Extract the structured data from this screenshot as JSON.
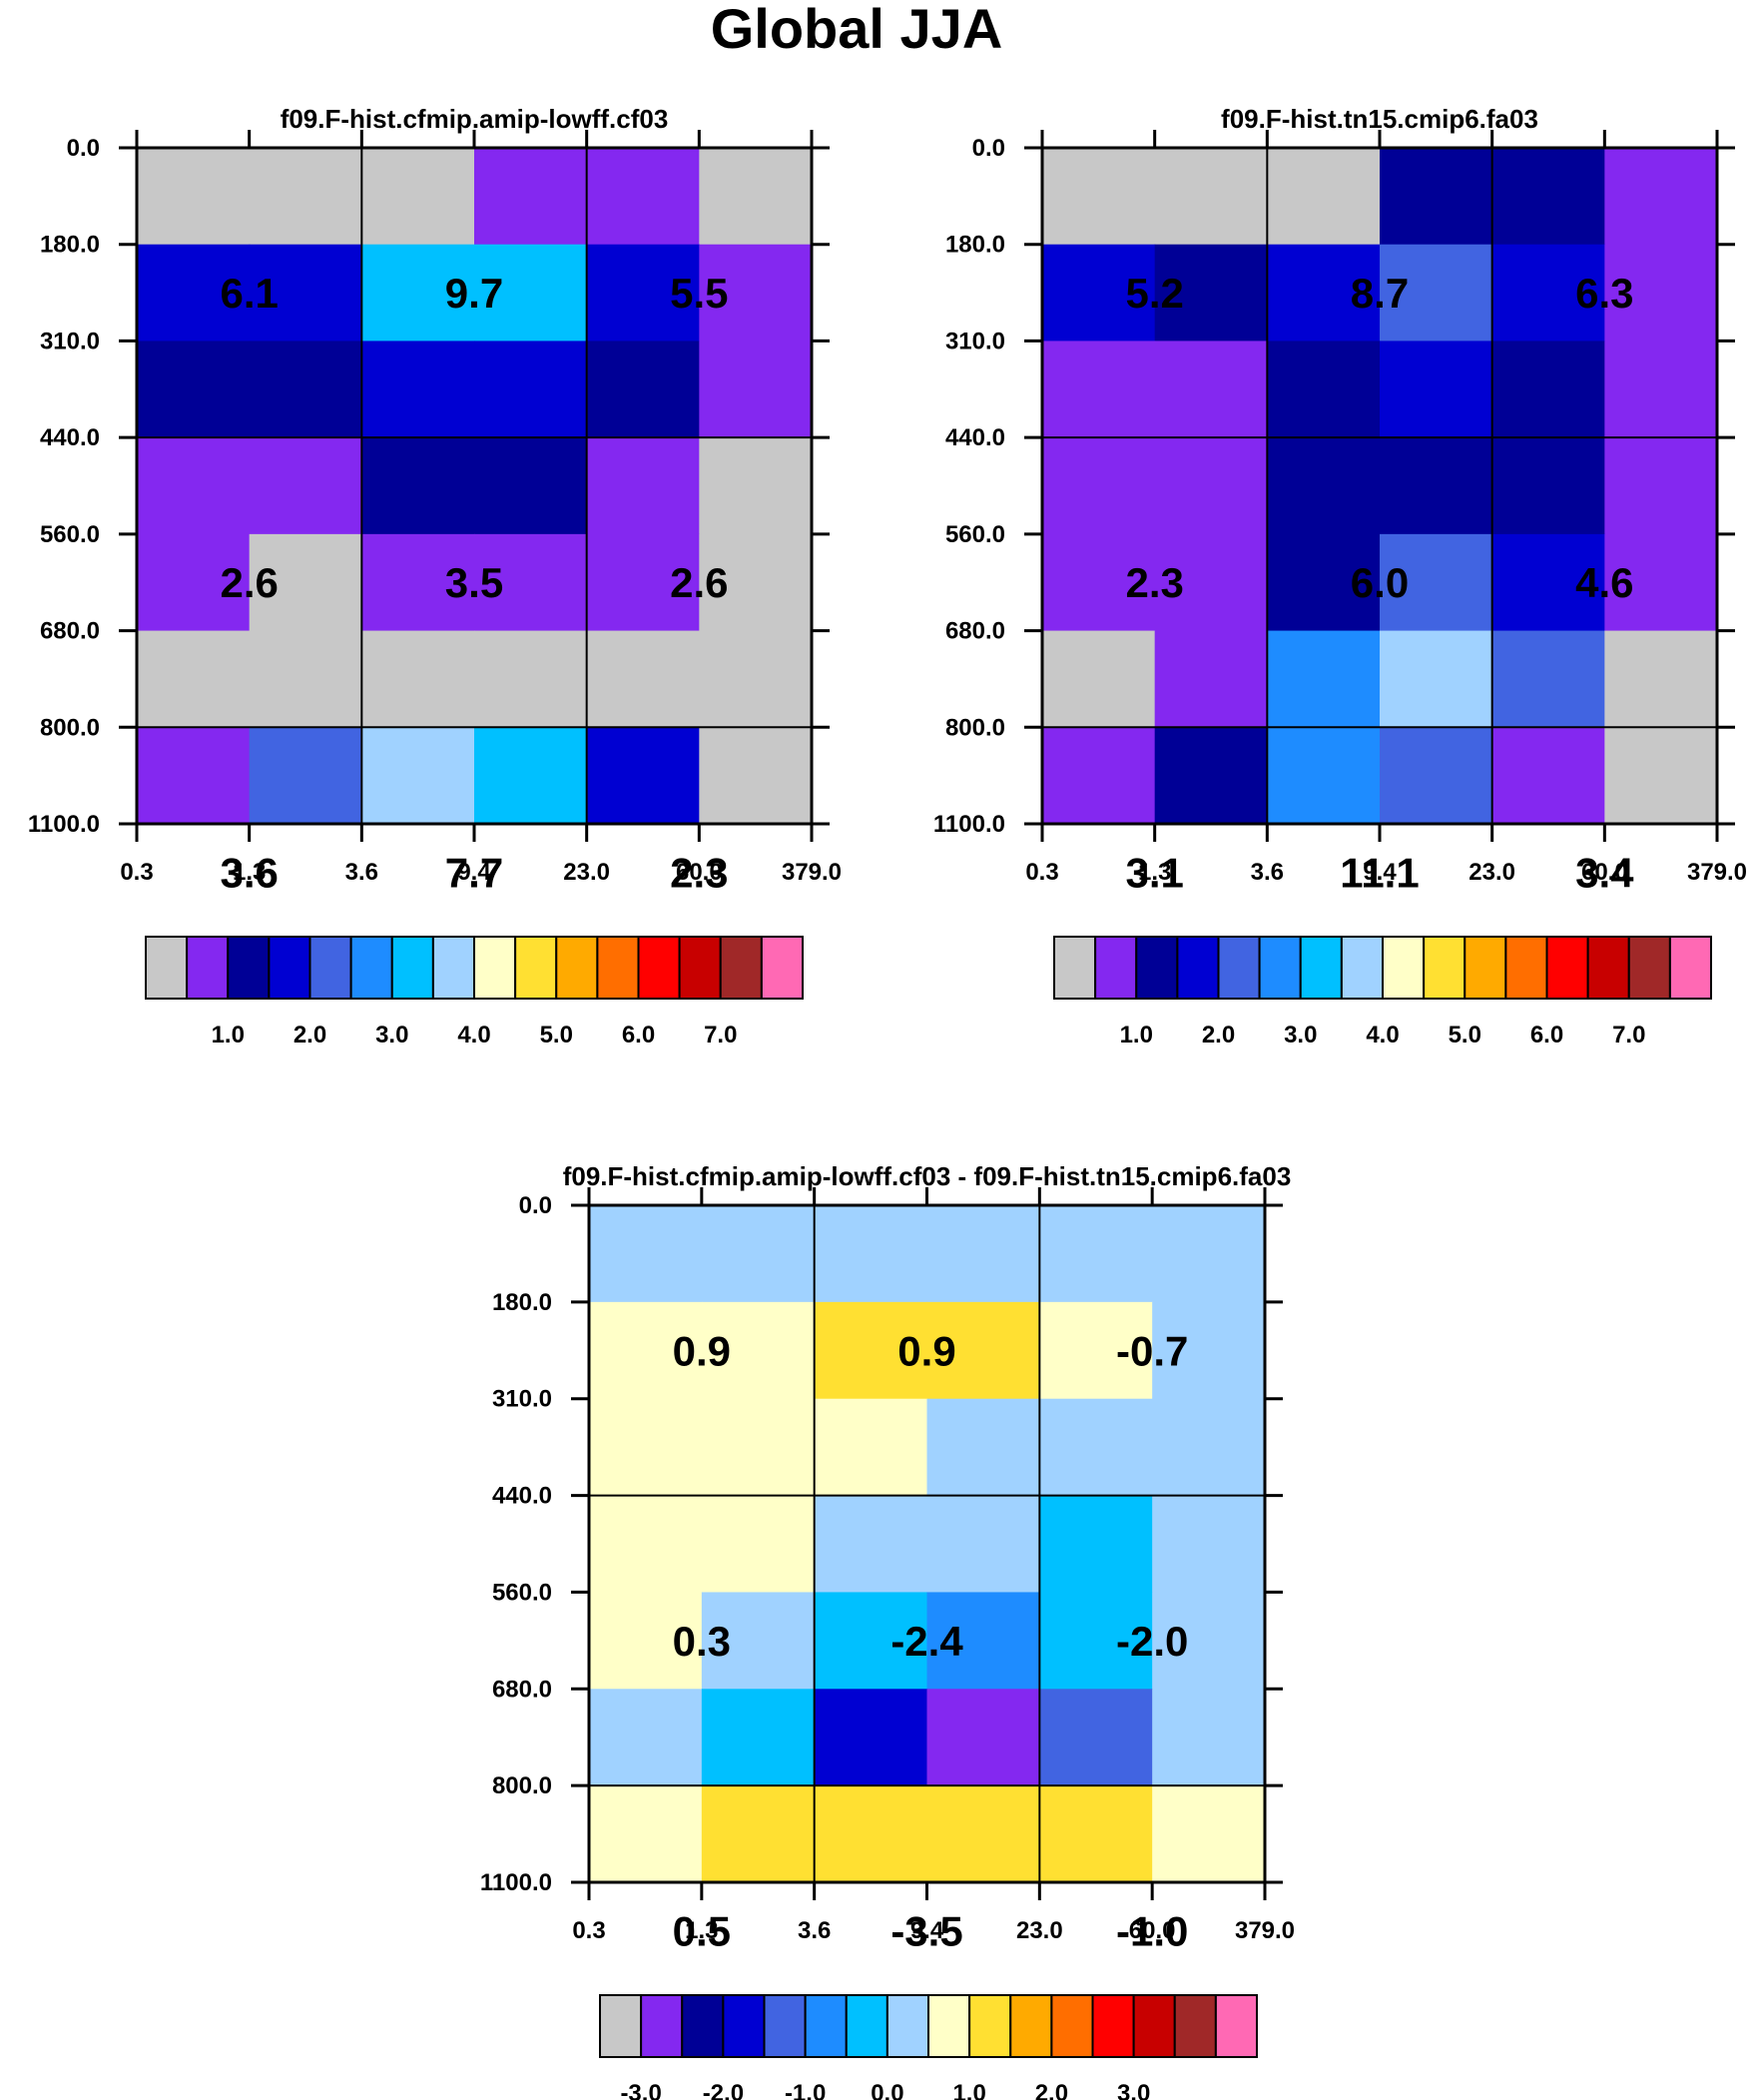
{
  "figure_title": "Global JJA",
  "colors": {
    "palette": [
      "#c8c8c8",
      "#8428f0",
      "#000096",
      "#0000d2",
      "#4164e1",
      "#1e8cff",
      "#00c0ff",
      "#a0d2ff",
      "#ffffc8",
      "#ffe032",
      "#ffaa00",
      "#ff6e00",
      "#ff0000",
      "#c80000",
      "#a02828",
      "#ff69b4"
    ]
  },
  "chart_data": [
    {
      "type": "heatmap",
      "title": "f09.F-hist.cfmip.amip-lowff.cf03",
      "x_ticks": [
        "0.3",
        "1.3",
        "3.6",
        "9.4",
        "23.0",
        "60.0",
        "379.0"
      ],
      "y_ticks": [
        "0.0",
        "180.0",
        "310.0",
        "440.0",
        "560.0",
        "680.0",
        "800.0",
        "1100.0"
      ],
      "cells": [
        [
          0,
          0,
          0,
          1,
          1,
          0
        ],
        [
          3,
          3,
          6,
          6,
          3,
          1
        ],
        [
          2,
          2,
          3,
          3,
          2,
          1
        ],
        [
          1,
          1,
          2,
          2,
          1,
          0
        ],
        [
          1,
          0,
          1,
          1,
          1,
          0
        ],
        [
          0,
          0,
          0,
          0,
          0,
          0
        ],
        [
          1,
          4,
          7,
          6,
          3,
          0
        ]
      ],
      "box_values": [
        [
          "6.1",
          "9.7",
          "5.5"
        ],
        [
          "2.6",
          "3.5",
          "2.6"
        ],
        [
          "3.6",
          "7.7",
          "2.3"
        ]
      ],
      "colorbar_labels": [
        "1.0",
        "2.0",
        "3.0",
        "4.0",
        "5.0",
        "6.0",
        "7.0"
      ]
    },
    {
      "type": "heatmap",
      "title": "f09.F-hist.tn15.cmip6.fa03",
      "x_ticks": [
        "0.3",
        "1.3",
        "3.6",
        "9.4",
        "23.0",
        "60.0",
        "379.0"
      ],
      "y_ticks": [
        "0.0",
        "180.0",
        "310.0",
        "440.0",
        "560.0",
        "680.0",
        "800.0",
        "1100.0"
      ],
      "cells": [
        [
          0,
          0,
          0,
          2,
          2,
          1
        ],
        [
          3,
          2,
          3,
          4,
          3,
          1
        ],
        [
          1,
          1,
          2,
          3,
          2,
          1
        ],
        [
          1,
          1,
          2,
          2,
          2,
          1
        ],
        [
          1,
          1,
          2,
          4,
          3,
          1
        ],
        [
          0,
          1,
          5,
          7,
          4,
          0
        ],
        [
          1,
          2,
          5,
          4,
          1,
          0
        ]
      ],
      "box_values": [
        [
          "5.2",
          "8.7",
          "6.3"
        ],
        [
          "2.3",
          "6.0",
          "4.6"
        ],
        [
          "3.1",
          "11.1",
          "3.4"
        ]
      ],
      "colorbar_labels": [
        "1.0",
        "2.0",
        "3.0",
        "4.0",
        "5.0",
        "6.0",
        "7.0"
      ]
    },
    {
      "type": "heatmap",
      "title": "f09.F-hist.cfmip.amip-lowff.cf03 - f09.F-hist.tn15.cmip6.fa03",
      "x_ticks": [
        "0.3",
        "1.3",
        "3.6",
        "9.4",
        "23.0",
        "60.0",
        "379.0"
      ],
      "y_ticks": [
        "0.0",
        "180.0",
        "310.0",
        "440.0",
        "560.0",
        "680.0",
        "800.0",
        "1100.0"
      ],
      "cells": [
        [
          7,
          7,
          7,
          7,
          7,
          7
        ],
        [
          8,
          8,
          9,
          9,
          8,
          7
        ],
        [
          8,
          8,
          8,
          7,
          7,
          7
        ],
        [
          8,
          8,
          7,
          7,
          6,
          7
        ],
        [
          8,
          7,
          6,
          5,
          6,
          7
        ],
        [
          7,
          6,
          3,
          1,
          4,
          7
        ],
        [
          8,
          9,
          9,
          9,
          9,
          8
        ]
      ],
      "box_values": [
        [
          "0.9",
          "0.9",
          "-0.7"
        ],
        [
          "0.3",
          "-2.4",
          "-2.0"
        ],
        [
          "0.5",
          "-3.5",
          "-1.0"
        ]
      ],
      "colorbar_labels": [
        "-3.0",
        "-2.0",
        "-1.0",
        "0.0",
        "1.0",
        "2.0",
        "3.0"
      ]
    }
  ]
}
